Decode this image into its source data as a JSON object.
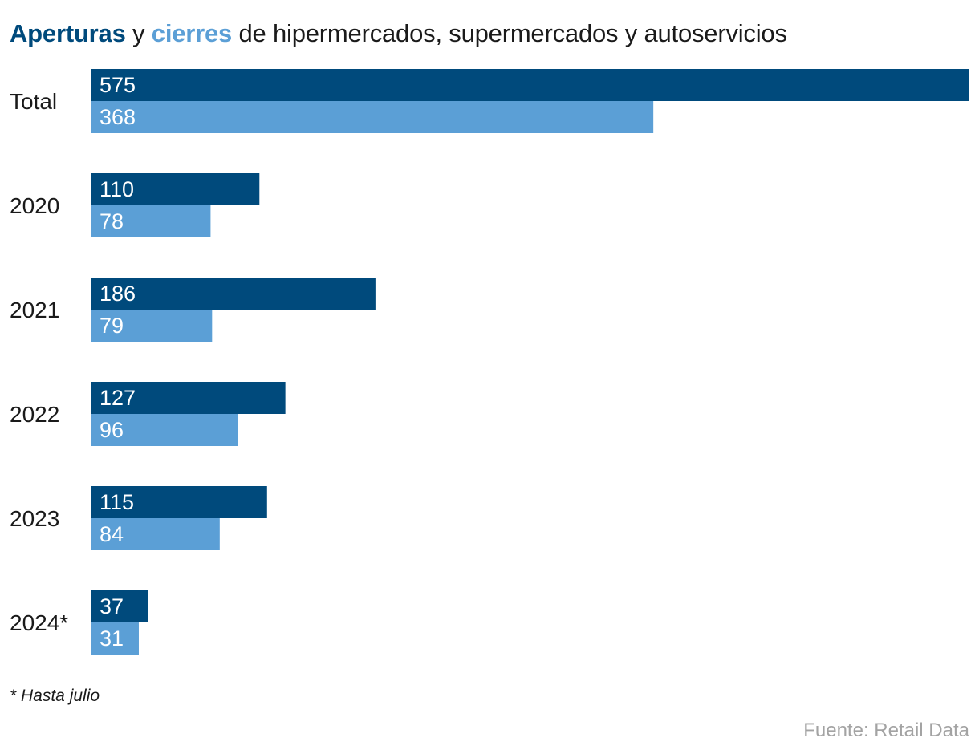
{
  "colors": {
    "aperturas": "#004a7c",
    "cierres": "#5b9fd6"
  },
  "title": {
    "part_aperturas": "Aperturas",
    "part_y": " y ",
    "part_cierres": "cierres",
    "part_rest": " de hipermercados, supermercados y autoservicios"
  },
  "footnote": "* Hasta julio",
  "source": "Fuente: Retail Data",
  "chart_data": {
    "type": "bar",
    "orientation": "horizontal",
    "title": "Aperturas y cierres de hipermercados, supermercados y autoservicios",
    "categories": [
      "Total",
      "2020",
      "2021",
      "2022",
      "2023",
      "2024*"
    ],
    "series": [
      {
        "name": "Aperturas",
        "values": [
          575,
          110,
          186,
          127,
          115,
          37
        ]
      },
      {
        "name": "Cierres",
        "values": [
          368,
          78,
          79,
          96,
          84,
          31
        ]
      }
    ],
    "xlim": [
      0,
      575
    ],
    "grid": false,
    "legend": "in title"
  }
}
